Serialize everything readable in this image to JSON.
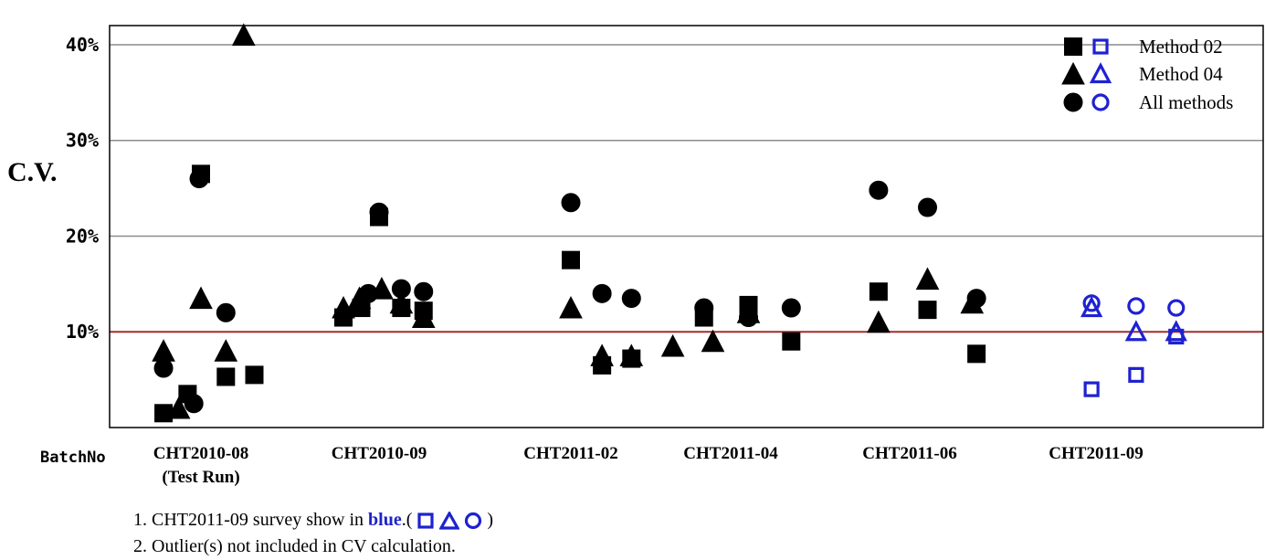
{
  "chart_data": {
    "type": "scatter",
    "ylabel": "C.V.",
    "xlabel": "BatchNo",
    "ylim": [
      0,
      42
    ],
    "yticks": [
      {
        "value": 10,
        "label": "10%"
      },
      {
        "value": 20,
        "label": "20%"
      },
      {
        "value": 30,
        "label": "30%"
      },
      {
        "value": 40,
        "label": "40%"
      }
    ],
    "reference_line": {
      "value": 10,
      "color": "#a62b2b"
    },
    "grid": true,
    "categories": [
      {
        "label": "CHT2010-08",
        "sublabel": "(Test Run)"
      },
      {
        "label": "CHT2010-09",
        "sublabel": ""
      },
      {
        "label": "CHT2011-02",
        "sublabel": ""
      },
      {
        "label": "CHT2011-04",
        "sublabel": ""
      },
      {
        "label": "CHT2011-06",
        "sublabel": ""
      },
      {
        "label": "CHT2011-09",
        "sublabel": ""
      }
    ],
    "legend": {
      "position": "top-right",
      "entries": [
        {
          "name": "Method 02",
          "marker": "square"
        },
        {
          "name": "Method 04",
          "marker": "triangle"
        },
        {
          "name": "All methods",
          "marker": "circle"
        }
      ]
    },
    "series": [
      {
        "name": "Method 02",
        "marker": "square",
        "points": [
          {
            "category": 0,
            "offset": -0.42,
            "y": 1.5
          },
          {
            "category": 0,
            "offset": -0.15,
            "y": 3.5
          },
          {
            "category": 0,
            "offset": 0.0,
            "y": 26.5
          },
          {
            "category": 0,
            "offset": 0.28,
            "y": 5.3
          },
          {
            "category": 0,
            "offset": 0.6,
            "y": 5.5
          },
          {
            "category": 1,
            "offset": -0.4,
            "y": 11.5
          },
          {
            "category": 1,
            "offset": -0.2,
            "y": 12.5
          },
          {
            "category": 1,
            "offset": 0.0,
            "y": 22.0
          },
          {
            "category": 1,
            "offset": 0.25,
            "y": 12.5
          },
          {
            "category": 1,
            "offset": 0.5,
            "y": 12.2
          },
          {
            "category": 2,
            "offset": 0.0,
            "y": 17.5
          },
          {
            "category": 2,
            "offset": 0.35,
            "y": 6.5
          },
          {
            "category": 2,
            "offset": 0.68,
            "y": 7.2
          },
          {
            "category": 3,
            "offset": -0.3,
            "y": 11.5
          },
          {
            "category": 3,
            "offset": 0.2,
            "y": 12.8
          },
          {
            "category": 3,
            "offset": 0.68,
            "y": 9.0
          },
          {
            "category": 4,
            "offset": -0.35,
            "y": 14.2
          },
          {
            "category": 4,
            "offset": 0.2,
            "y": 12.3
          },
          {
            "category": 4,
            "offset": 0.75,
            "y": 7.7
          }
        ]
      },
      {
        "name": "Method 04",
        "marker": "triangle",
        "points": [
          {
            "category": 0,
            "offset": -0.42,
            "y": 8.0
          },
          {
            "category": 0,
            "offset": -0.25,
            "y": 2.0
          },
          {
            "category": 0,
            "offset": 0.0,
            "y": 13.5
          },
          {
            "category": 0,
            "offset": 0.28,
            "y": 8.0
          },
          {
            "category": 0,
            "offset": 0.48,
            "y": 41.0
          },
          {
            "category": 1,
            "offset": -0.4,
            "y": 12.5
          },
          {
            "category": 1,
            "offset": -0.22,
            "y": 13.5
          },
          {
            "category": 1,
            "offset": 0.03,
            "y": 14.5
          },
          {
            "category": 1,
            "offset": 0.25,
            "y": 13.0
          },
          {
            "category": 1,
            "offset": 0.5,
            "y": 11.5
          },
          {
            "category": 2,
            "offset": 0.0,
            "y": 12.5
          },
          {
            "category": 2,
            "offset": 0.35,
            "y": 7.5
          },
          {
            "category": 2,
            "offset": 0.68,
            "y": 7.5
          },
          {
            "category": 3,
            "offset": -0.65,
            "y": 8.5
          },
          {
            "category": 3,
            "offset": -0.2,
            "y": 9.0
          },
          {
            "category": 3,
            "offset": 0.2,
            "y": 12.0
          },
          {
            "category": 4,
            "offset": -0.35,
            "y": 11.0
          },
          {
            "category": 4,
            "offset": 0.2,
            "y": 15.5
          },
          {
            "category": 4,
            "offset": 0.7,
            "y": 13.0
          }
        ]
      },
      {
        "name": "All methods",
        "marker": "circle",
        "points": [
          {
            "category": 0,
            "offset": -0.42,
            "y": 6.2
          },
          {
            "category": 0,
            "offset": -0.08,
            "y": 2.5
          },
          {
            "category": 0,
            "offset": -0.02,
            "y": 26.0
          },
          {
            "category": 0,
            "offset": 0.28,
            "y": 12.0
          },
          {
            "category": 1,
            "offset": -0.12,
            "y": 14.0
          },
          {
            "category": 1,
            "offset": 0.0,
            "y": 22.5
          },
          {
            "category": 1,
            "offset": 0.25,
            "y": 14.5
          },
          {
            "category": 1,
            "offset": 0.5,
            "y": 14.2
          },
          {
            "category": 2,
            "offset": 0.0,
            "y": 23.5
          },
          {
            "category": 2,
            "offset": 0.35,
            "y": 14.0
          },
          {
            "category": 2,
            "offset": 0.68,
            "y": 13.5
          },
          {
            "category": 3,
            "offset": -0.3,
            "y": 12.5
          },
          {
            "category": 3,
            "offset": 0.2,
            "y": 11.5
          },
          {
            "category": 3,
            "offset": 0.68,
            "y": 12.5
          },
          {
            "category": 4,
            "offset": -0.35,
            "y": 24.8
          },
          {
            "category": 4,
            "offset": 0.2,
            "y": 23.0
          },
          {
            "category": 4,
            "offset": 0.75,
            "y": 13.5
          }
        ]
      },
      {
        "name": "Method 02 (CHT2011-09)",
        "marker": "square-open",
        "color": "#1e22d0",
        "points": [
          {
            "category": 5,
            "offset": -0.05,
            "y": 4.0
          },
          {
            "category": 5,
            "offset": 0.45,
            "y": 5.5
          },
          {
            "category": 5,
            "offset": 0.9,
            "y": 9.5
          }
        ]
      },
      {
        "name": "Method 04 (CHT2011-09)",
        "marker": "triangle-open",
        "color": "#1e22d0",
        "points": [
          {
            "category": 5,
            "offset": -0.05,
            "y": 12.5
          },
          {
            "category": 5,
            "offset": 0.45,
            "y": 10.0
          },
          {
            "category": 5,
            "offset": 0.9,
            "y": 10.0
          }
        ]
      },
      {
        "name": "All methods (CHT2011-09)",
        "marker": "circle-open",
        "color": "#1e22d0",
        "points": [
          {
            "category": 5,
            "offset": -0.05,
            "y": 13.0
          },
          {
            "category": 5,
            "offset": 0.45,
            "y": 12.7
          },
          {
            "category": 5,
            "offset": 0.9,
            "y": 12.5
          }
        ]
      }
    ]
  },
  "colors": {
    "filled": "#000000",
    "open": "#1e22d0",
    "reference_line": "#a62b2b",
    "grid": "#8c8c8c"
  },
  "notes": {
    "line1_prefix": "1. CHT2011-09 survey show in ",
    "line1_blue": "blue",
    "line1_after": ".(",
    "line1_end": " )",
    "line2": "2. Outlier(s) not included in CV calculation."
  }
}
